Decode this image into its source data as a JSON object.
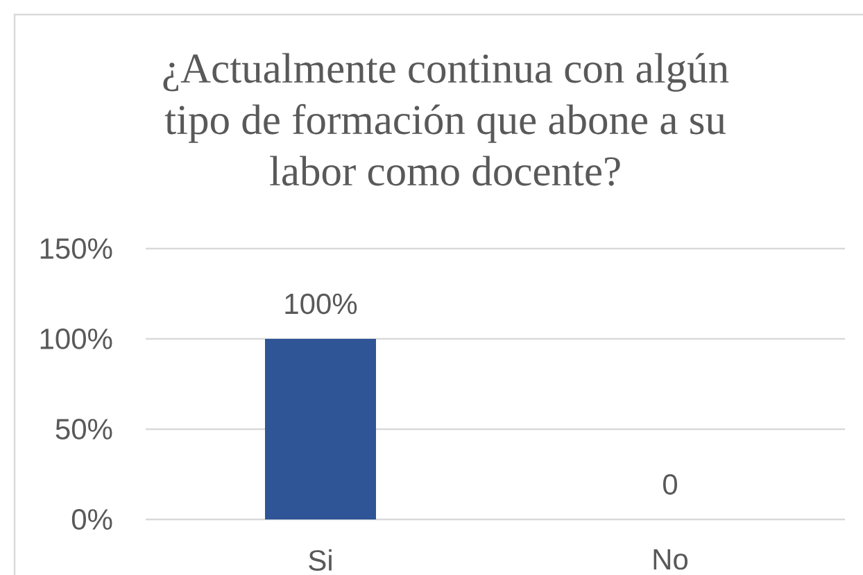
{
  "chart_data": {
    "type": "bar",
    "title": "¿Actualmente continua con algún tipo de formación que abone a su labor como docente?",
    "categories": [
      "Si",
      "No"
    ],
    "values": [
      100,
      0
    ],
    "color": "#2f5597",
    "value_labels": [
      "100%",
      "0"
    ],
    "ylim": [
      0,
      150
    ],
    "yticks": [
      {
        "value": 0,
        "label": "0%"
      },
      {
        "value": 50,
        "label": "50%"
      },
      {
        "value": 100,
        "label": "100%"
      },
      {
        "value": 150,
        "label": "150%"
      }
    ],
    "grid": "y"
  }
}
